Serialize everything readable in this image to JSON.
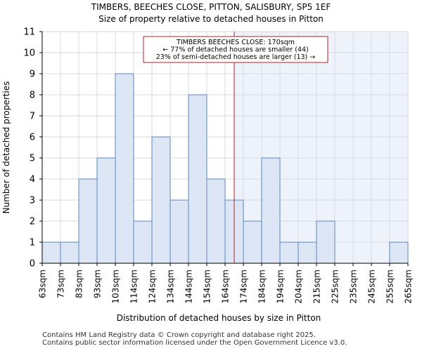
{
  "chart_data": {
    "type": "histogram",
    "title": "TIMBERS, BEECHES CLOSE, PITTON, SALISBURY, SP5 1EF",
    "subtitle": "Size of property relative to detached houses in Pitton",
    "xlabel": "Distribution of detached houses by size in Pitton",
    "ylabel": "Number of detached properties",
    "ylim": [
      0,
      11
    ],
    "yticks": [
      0,
      1,
      2,
      3,
      4,
      5,
      6,
      7,
      8,
      9,
      10,
      11
    ],
    "categories": [
      "63sqm",
      "73sqm",
      "83sqm",
      "93sqm",
      "103sqm",
      "114sqm",
      "124sqm",
      "134sqm",
      "144sqm",
      "154sqm",
      "164sqm",
      "174sqm",
      "184sqm",
      "194sqm",
      "204sqm",
      "215sqm",
      "225sqm",
      "235sqm",
      "245sqm",
      "255sqm",
      "265sqm"
    ],
    "values": [
      1,
      1,
      4,
      5,
      9,
      2,
      6,
      3,
      8,
      4,
      3,
      2,
      5,
      1,
      1,
      2,
      0,
      0,
      0,
      1
    ],
    "subject_marker_bin_position": 10.5,
    "annotation": {
      "line1": "TIMBERS BEECHES CLOSE: 170sqm",
      "line2": "← 77% of detached houses are smaller (44)",
      "line3": "23% of semi-detached houses are larger (13) →"
    },
    "colors": {
      "bar_fill": "#dce6f4",
      "bar_stroke": "#5a86c2",
      "highlight_region": "#eef3fb",
      "marker_line": "#b22222",
      "annotation_border": "#b22222"
    }
  },
  "footer": {
    "line1": "Contains HM Land Registry data © Crown copyright and database right 2025.",
    "line2": "Contains public sector information licensed under the Open Government Licence v3.0."
  }
}
